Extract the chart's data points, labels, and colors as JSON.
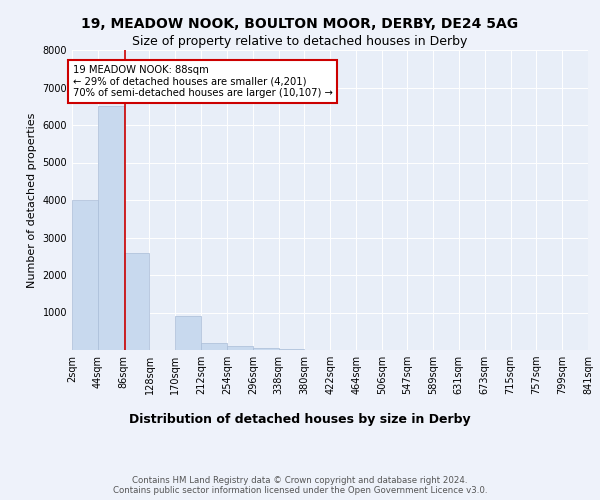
{
  "title": "19, MEADOW NOOK, BOULTON MOOR, DERBY, DE24 5AG",
  "subtitle": "Size of property relative to detached houses in Derby",
  "xlabel": "Distribution of detached houses by size in Derby",
  "ylabel": "Number of detached properties",
  "bin_edges": [
    2,
    44,
    86,
    128,
    170,
    212,
    254,
    296,
    338,
    380,
    422,
    464,
    506,
    547,
    589,
    631,
    673,
    715,
    757,
    799,
    841
  ],
  "bin_counts": [
    4000,
    6500,
    2600,
    0,
    900,
    200,
    100,
    50,
    20,
    5,
    0,
    0,
    0,
    0,
    0,
    0,
    0,
    0,
    0,
    0
  ],
  "bar_color": "#c8d9ee",
  "bar_edge_color": "#aabdd8",
  "property_size": 88,
  "red_line_color": "#cc0000",
  "annotation_text": "19 MEADOW NOOK: 88sqm\n← 29% of detached houses are smaller (4,201)\n70% of semi-detached houses are larger (10,107) →",
  "annotation_box_color": "#ffffff",
  "annotation_box_edge": "#cc0000",
  "ylim": [
    0,
    8000
  ],
  "yticks": [
    0,
    1000,
    2000,
    3000,
    4000,
    5000,
    6000,
    7000,
    8000
  ],
  "footer_text": "Contains HM Land Registry data © Crown copyright and database right 2024.\nContains public sector information licensed under the Open Government Licence v3.0.",
  "bg_color": "#e8eef8",
  "plot_bg_color": "#e8eef8",
  "fig_bg_color": "#eef2fa",
  "title_fontsize": 10,
  "subtitle_fontsize": 9,
  "xlabel_fontsize": 9,
  "ylabel_fontsize": 8,
  "tick_fontsize": 7,
  "tick_labels": [
    "2sqm",
    "44sqm",
    "86sqm",
    "128sqm",
    "170sqm",
    "212sqm",
    "254sqm",
    "296sqm",
    "338sqm",
    "380sqm",
    "422sqm",
    "464sqm",
    "506sqm",
    "547sqm",
    "589sqm",
    "631sqm",
    "673sqm",
    "715sqm",
    "757sqm",
    "799sqm",
    "841sqm"
  ]
}
